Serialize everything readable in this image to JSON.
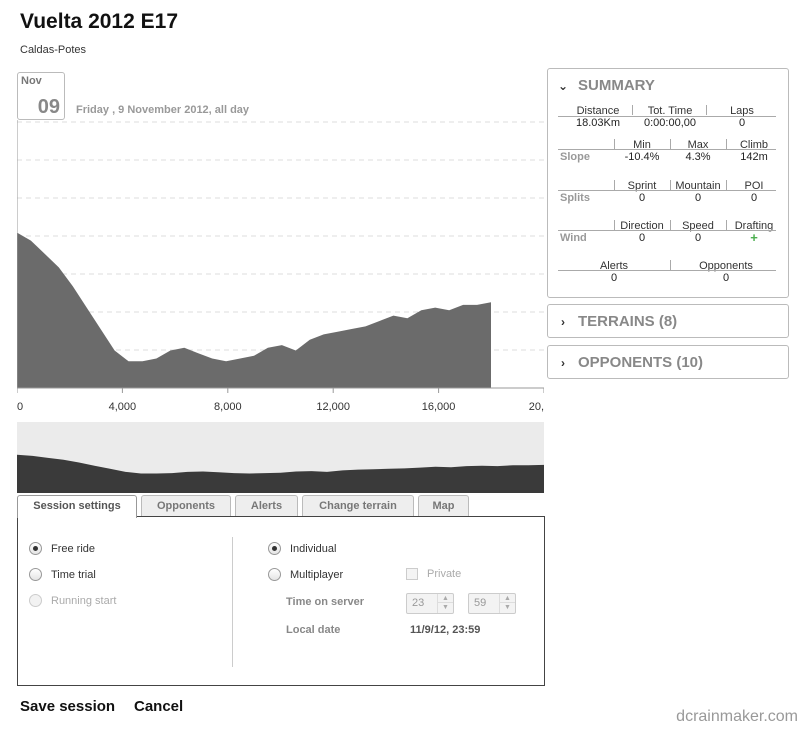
{
  "header": {
    "title": "Vuelta 2012 E17",
    "subtitle": "Caldas-Potes"
  },
  "date": {
    "month": "Nov",
    "day": "09",
    "full": "Friday , 9 November  2012, all day"
  },
  "profile": {
    "x_ticks": [
      "0",
      "4,000",
      "8,000",
      "12,000",
      "16,000",
      "20,"
    ],
    "fill_color": "#6b6b6b",
    "minimap_color": "#3a3a3a",
    "elevation_relative": [
      0.58,
      0.55,
      0.5,
      0.45,
      0.38,
      0.3,
      0.22,
      0.14,
      0.1,
      0.1,
      0.11,
      0.14,
      0.15,
      0.13,
      0.11,
      0.1,
      0.11,
      0.12,
      0.15,
      0.16,
      0.14,
      0.18,
      0.2,
      0.21,
      0.22,
      0.23,
      0.25,
      0.27,
      0.26,
      0.29,
      0.3,
      0.29,
      0.31,
      0.31,
      0.32
    ]
  },
  "tabs": [
    "Session settings",
    "Opponents",
    "Alerts",
    "Change terrain",
    "Map"
  ],
  "settings": {
    "free_ride": "Free ride",
    "time_trial": "Time trial",
    "running_start": "Running start",
    "individual": "Individual",
    "multiplayer": "Multiplayer",
    "private": "Private",
    "time_on_server_label": "Time on server",
    "hour": "23",
    "minute": "59",
    "local_date_label": "Local date",
    "local_date": "11/9/12, 23:59"
  },
  "actions": {
    "save": "Save session",
    "cancel": "Cancel"
  },
  "summary": {
    "title": "SUMMARY",
    "distance_label": "Distance",
    "distance": "18.03Km",
    "tot_time_label": "Tot. Time",
    "tot_time": "0:00:00,00",
    "laps_label": "Laps",
    "laps": "0",
    "min_label": "Min",
    "max_label": "Max",
    "climb_label": "Climb",
    "slope_label": "Slope",
    "slope_min": "-10.4%",
    "slope_max": "4.3%",
    "climb": "142m",
    "sprint_label": "Sprint",
    "mountain_label": "Mountain",
    "poi_label": "POI",
    "splits_label": "Splits",
    "sprint": "0",
    "mountain": "0",
    "poi": "0",
    "direction_label": "Direction",
    "speed_label": "Speed",
    "drafting_label": "Drafting",
    "wind_label": "Wind",
    "direction": "0",
    "speed": "0",
    "drafting": "+",
    "alerts_label": "Alerts",
    "opponents_label": "Opponents",
    "alerts": "0",
    "opponents": "0"
  },
  "terrains": {
    "title": "TERRAINS (8)"
  },
  "opponents_panel": {
    "title": "OPPONENTS (10)"
  },
  "watermark": "dcrainmaker.com"
}
